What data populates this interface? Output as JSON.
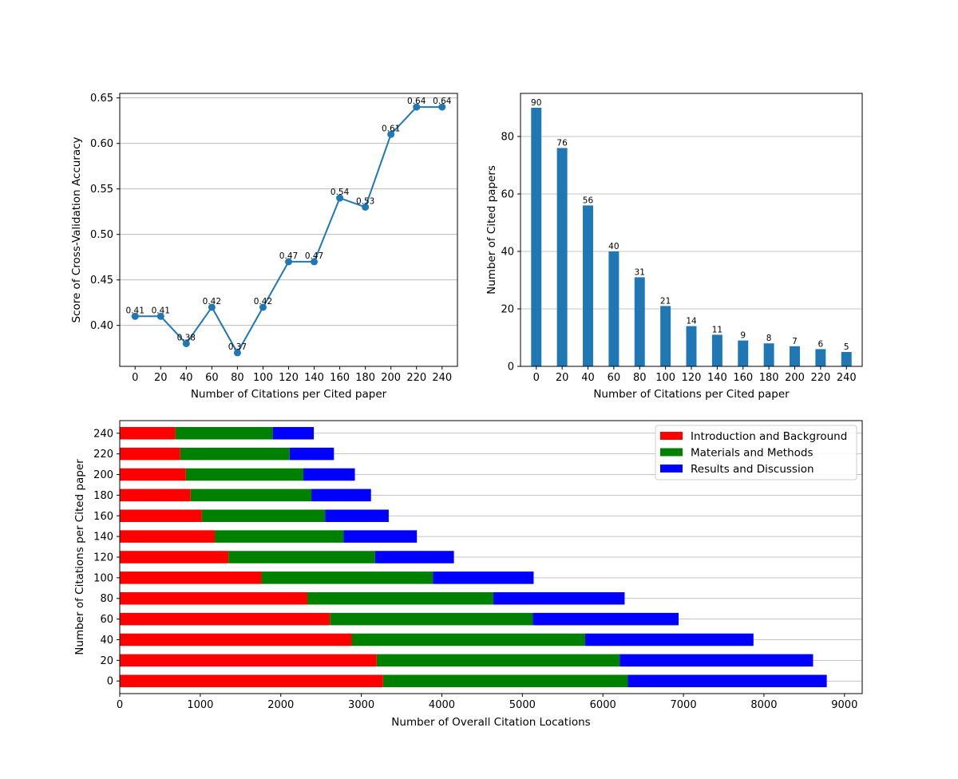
{
  "chart_data": [
    {
      "type": "line",
      "xlabel": "Number of Citations per Cited paper",
      "ylabel": "Score of Cross-Validation Accuracy",
      "x": [
        0,
        20,
        40,
        60,
        80,
        100,
        120,
        140,
        160,
        180,
        200,
        220,
        240
      ],
      "values": [
        0.41,
        0.41,
        0.38,
        0.42,
        0.37,
        0.42,
        0.47,
        0.47,
        0.54,
        0.53,
        0.61,
        0.64,
        0.64
      ],
      "data_labels": [
        "0.41",
        "0.41",
        "0.38",
        "0.42",
        "0.37",
        "0.42",
        "0.47",
        "0.47",
        "0.54",
        "0.53",
        "0.61",
        "0.64",
        "0.64"
      ],
      "xticks": [
        "0",
        "20",
        "40",
        "60",
        "80",
        "100",
        "120",
        "140",
        "160",
        "180",
        "200",
        "220",
        "240"
      ],
      "yticks": [
        "0.40",
        "0.45",
        "0.50",
        "0.55",
        "0.60",
        "0.65"
      ],
      "ylim": [
        0.355,
        0.655
      ],
      "grid": "horizontal",
      "color": "#1f77b4"
    },
    {
      "type": "bar",
      "xlabel": "Number of Citations per Cited paper",
      "ylabel": "Number of Cited papers",
      "categories": [
        "0",
        "20",
        "40",
        "60",
        "80",
        "100",
        "120",
        "140",
        "160",
        "180",
        "200",
        "220",
        "240"
      ],
      "values": [
        90,
        76,
        56,
        40,
        31,
        21,
        14,
        11,
        9,
        8,
        7,
        6,
        5
      ],
      "data_labels": [
        "90",
        "76",
        "56",
        "40",
        "31",
        "21",
        "14",
        "11",
        "9",
        "8",
        "7",
        "6",
        "5"
      ],
      "yticks": [
        "0",
        "20",
        "40",
        "60",
        "80"
      ],
      "ylim": [
        0,
        95
      ],
      "grid": "horizontal",
      "color": "#1f77b4"
    },
    {
      "type": "bar",
      "orientation": "horizontal",
      "stacked": true,
      "xlabel": "Number of Overall Citation Locations",
      "ylabel": "Number of Citations per Cited paper",
      "categories": [
        "0",
        "20",
        "40",
        "60",
        "80",
        "100",
        "120",
        "140",
        "160",
        "180",
        "200",
        "220",
        "240"
      ],
      "series": [
        {
          "name": "Introduction and Background",
          "color": "#ff0000",
          "values": [
            3270,
            3190,
            2880,
            2610,
            2330,
            1760,
            1350,
            1180,
            1020,
            880,
            820,
            750,
            690
          ]
        },
        {
          "name": "Materials and Methods",
          "color": "#008000",
          "values": [
            3040,
            3020,
            2900,
            2520,
            2310,
            2130,
            1820,
            1600,
            1530,
            1500,
            1460,
            1360,
            1210
          ]
        },
        {
          "name": "Results and Discussion",
          "color": "#0000ff",
          "values": [
            2470,
            2400,
            2090,
            1810,
            1630,
            1250,
            980,
            910,
            790,
            740,
            640,
            550,
            510
          ]
        }
      ],
      "xticks": [
        "0",
        "1000",
        "2000",
        "3000",
        "4000",
        "5000",
        "6000",
        "7000",
        "8000",
        "9000"
      ],
      "xlim": [
        0,
        9220
      ],
      "grid": "horizontal",
      "legend": "top-right"
    }
  ]
}
